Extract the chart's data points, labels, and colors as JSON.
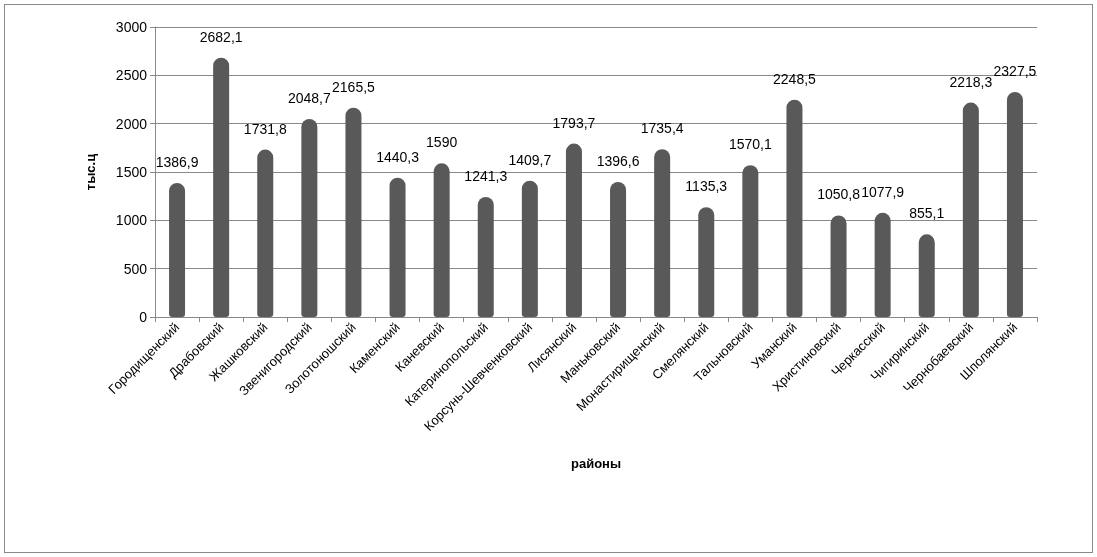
{
  "chart_data": {
    "type": "bar",
    "xlabel": "районы",
    "ylabel": "тыс.ц",
    "categories": [
      "Городищенский",
      "Драбовский",
      "Жашковский",
      "Звенигородский",
      "Золотоношский",
      "Каменский",
      "Каневский",
      "Катеринопольский",
      "Корсунь-Шевченковский",
      "Лисянский",
      "Маньковский",
      "Монастирищенский",
      "Смелянский",
      "Тальновский",
      "Уманский",
      "Христиновский",
      "Черкасский",
      "Чигиринский",
      "Чернобаевский",
      "Шполянский"
    ],
    "values": [
      1386.9,
      2682.1,
      1731.8,
      2048.7,
      2165.5,
      1440.3,
      1590,
      1241.3,
      1409.7,
      1793.7,
      1396.6,
      1735.4,
      1135.3,
      1570.1,
      2248.5,
      1050.8,
      1077.9,
      855.1,
      2218.3,
      2327.5
    ],
    "value_labels": [
      "1386,9",
      "2682,1",
      "1731,8",
      "2048,7",
      "2165,5",
      "1440,3",
      "1590",
      "1241,3",
      "1409,7",
      "1793,7",
      "1396,6",
      "1735,4",
      "1135,3",
      "1570,1",
      "2248,5",
      "1050,8",
      "1077,9",
      "855,1",
      "2218,3",
      "2327,5"
    ],
    "color": "#595959",
    "ylim": [
      0,
      3000
    ],
    "yticks": [
      0,
      500,
      1000,
      1500,
      2000,
      2500,
      3000
    ],
    "grid": "y"
  }
}
